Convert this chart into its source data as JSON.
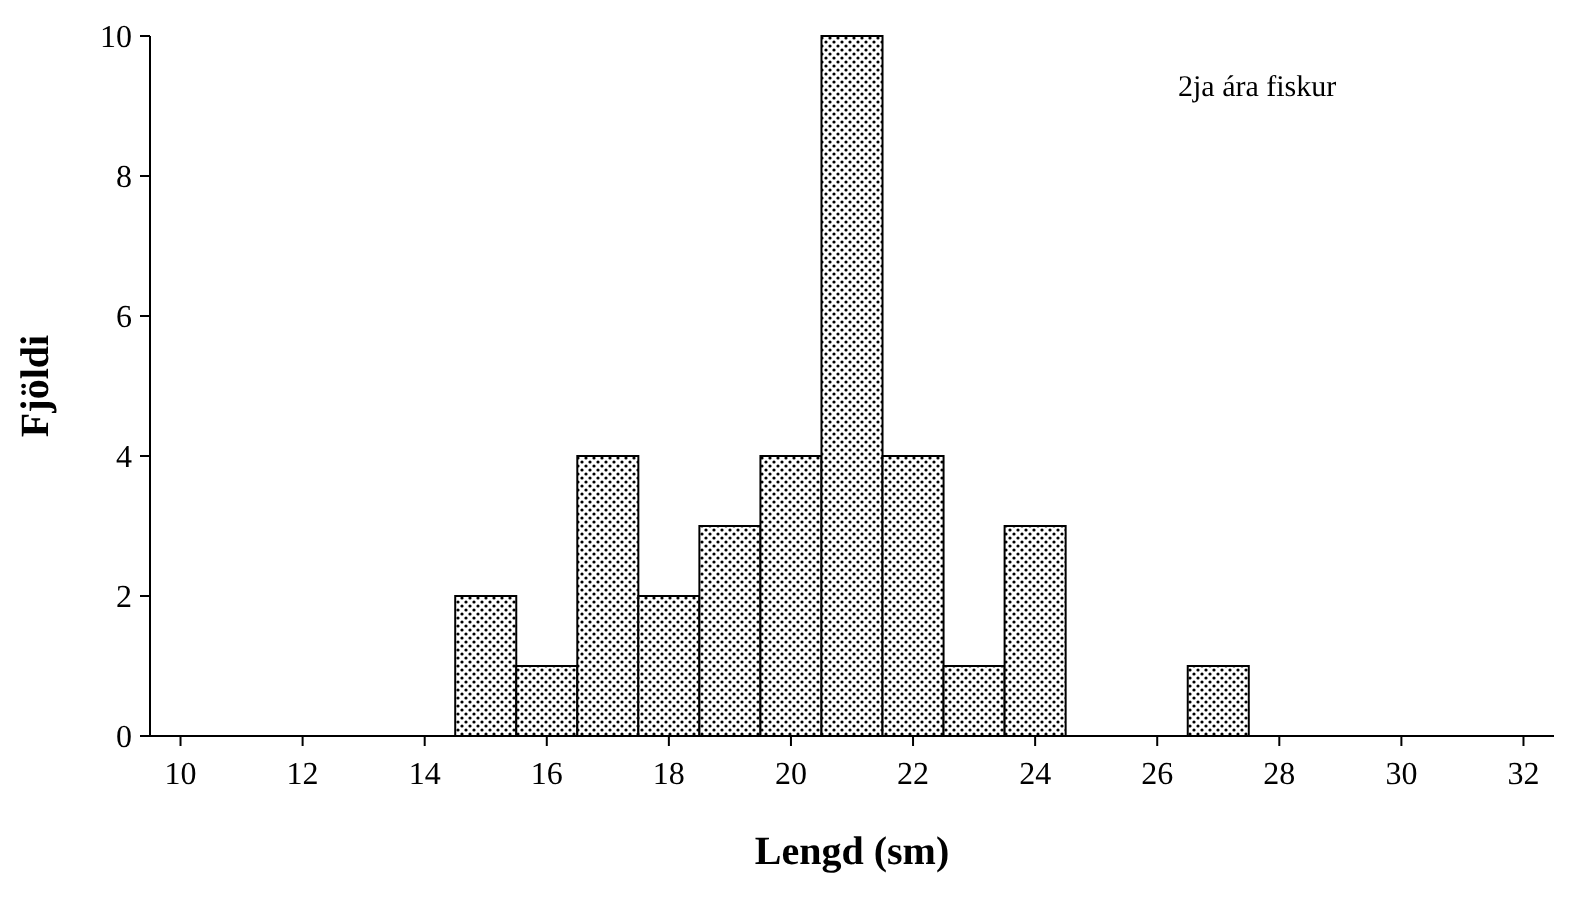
{
  "chart_data": {
    "type": "histogram",
    "xlabel": "Lengd (sm)",
    "ylabel": "Fjöldi",
    "annotations": [
      "2ja ára fiskur"
    ],
    "bins": [
      9.5,
      10.5,
      11.5,
      12.5,
      13.5,
      14.5,
      15.5,
      16.5,
      17.5,
      18.5,
      19.5,
      20.5,
      21.5,
      22.5,
      23.5,
      24.5,
      25.5,
      26.5,
      27.5,
      28.5,
      29.5,
      30.5,
      31.5,
      32.5
    ],
    "values": [
      0,
      0,
      0,
      0,
      0,
      2,
      1,
      4,
      2,
      3,
      4,
      10,
      4,
      1,
      3,
      0,
      0,
      1,
      0,
      0,
      0,
      0,
      0
    ],
    "color": "#000000",
    "xlim": [
      9.5,
      32.5
    ],
    "xticks": [
      10,
      12,
      14,
      16,
      18,
      20,
      22,
      24,
      26,
      28,
      30,
      32
    ],
    "ylim": [
      0,
      10
    ],
    "yticks": [
      0,
      2,
      4,
      6,
      8,
      10
    ],
    "grid": false
  }
}
